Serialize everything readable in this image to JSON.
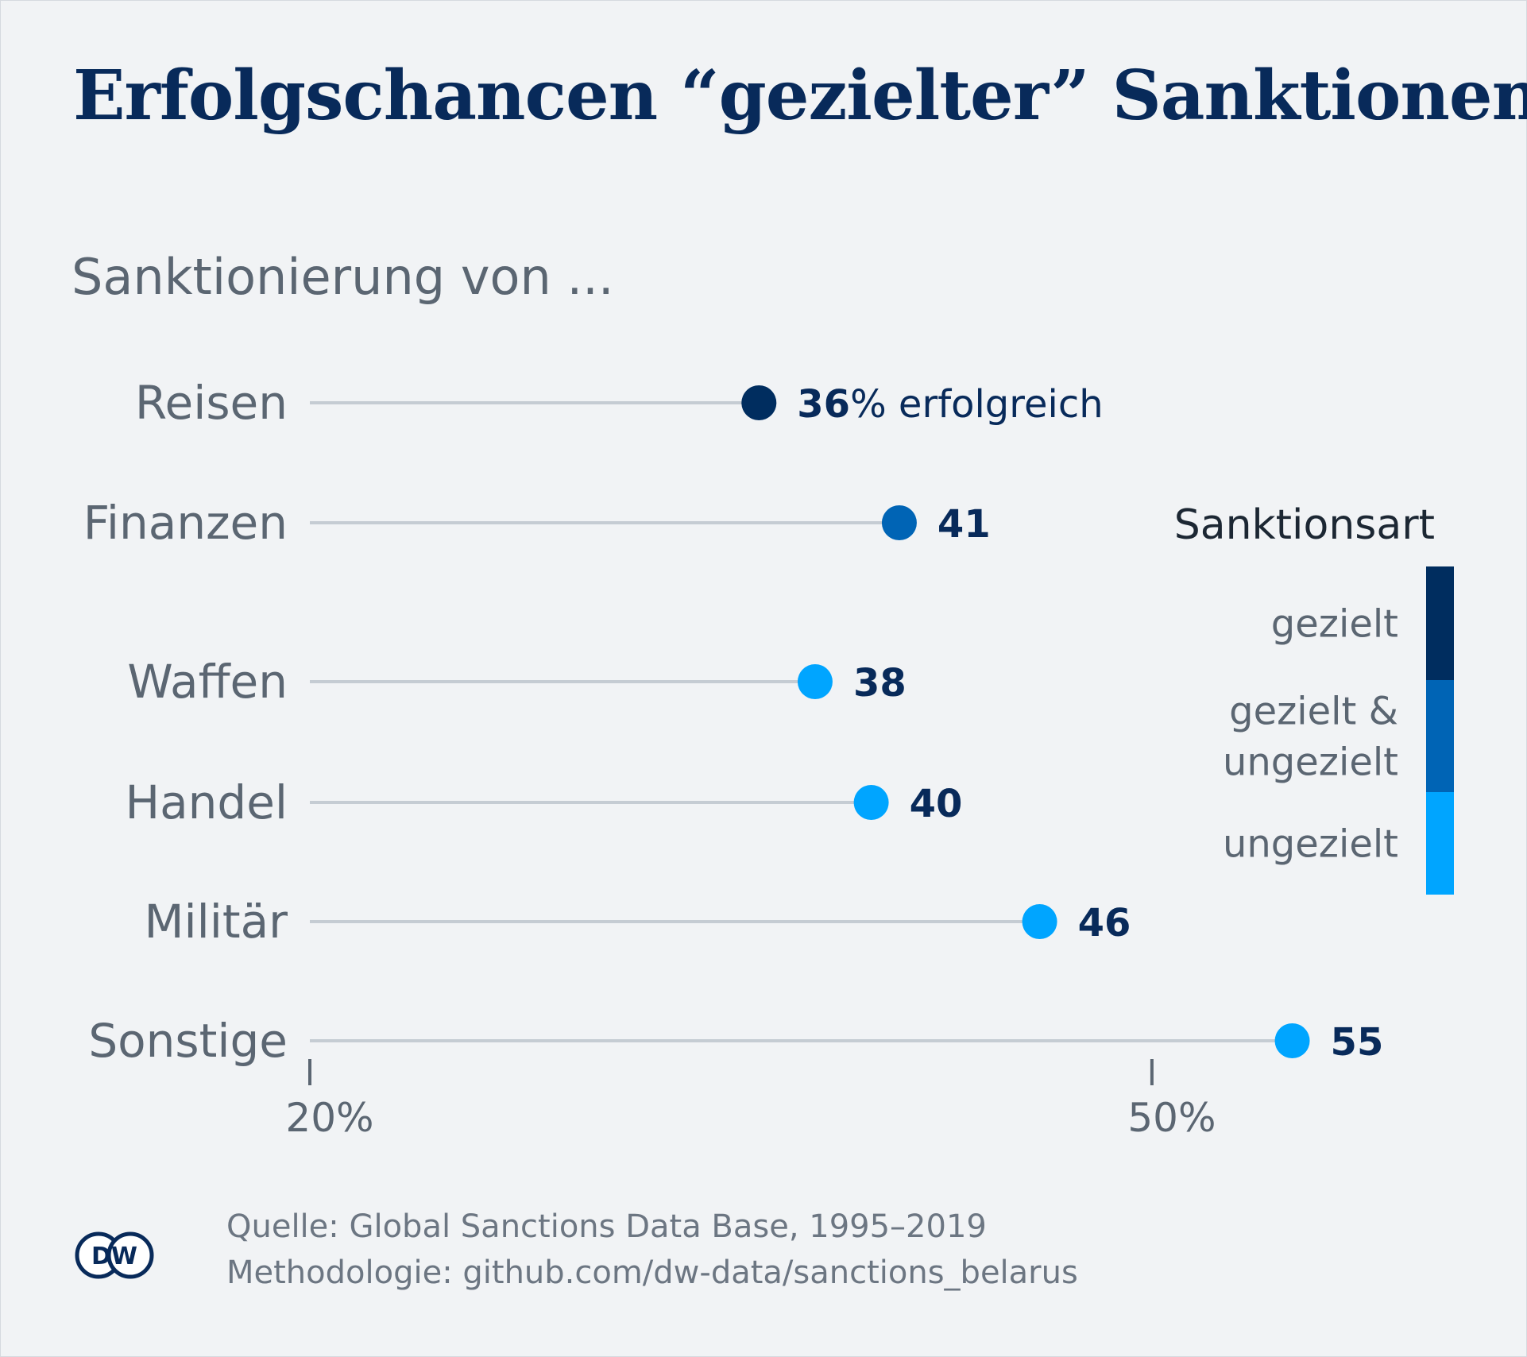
{
  "chart_data": {
    "type": "lollipop",
    "title": "Erfolgschancen “gezielter” Sanktionen",
    "subtitle": "Sanktionierung von ...",
    "categories": [
      "Reisen",
      "Finanzen",
      "Waffen",
      "Handel",
      "Militär",
      "Sonstige"
    ],
    "values": [
      36,
      41,
      38,
      40,
      46,
      55
    ],
    "value_unit": "%",
    "first_value_suffix": "% erfolgreich",
    "series_type": [
      "gezielt",
      "gezielt & ungezielt",
      "ungezielt",
      "ungezielt",
      "ungezielt",
      "ungezielt"
    ],
    "x_axis": {
      "ticks": [
        20,
        50
      ],
      "tick_labels": [
        "20%",
        "50%"
      ]
    },
    "grid": false,
    "legend": {
      "title": "Sanktionsart",
      "position": "right",
      "items": [
        {
          "label_lines": [
            "gezielt"
          ],
          "color": "#002d5f"
        },
        {
          "label_lines": [
            "gezielt &",
            "ungezielt"
          ],
          "color": "#0064b5"
        },
        {
          "label_lines": [
            "ungezielt"
          ],
          "color": "#00a5ff"
        }
      ]
    },
    "colors": {
      "stem": "#c5ccd3",
      "gezielt": "#002d5f",
      "gezielt & ungezielt": "#0064b5",
      "ungezielt": "#00a5ff"
    }
  },
  "source": {
    "line1": "Quelle: Global Sanctions Data Base, 1995–2019",
    "line2": "Methodologie: github.com/dw-data/sanctions_belarus"
  },
  "logo": {
    "text": "DW"
  }
}
